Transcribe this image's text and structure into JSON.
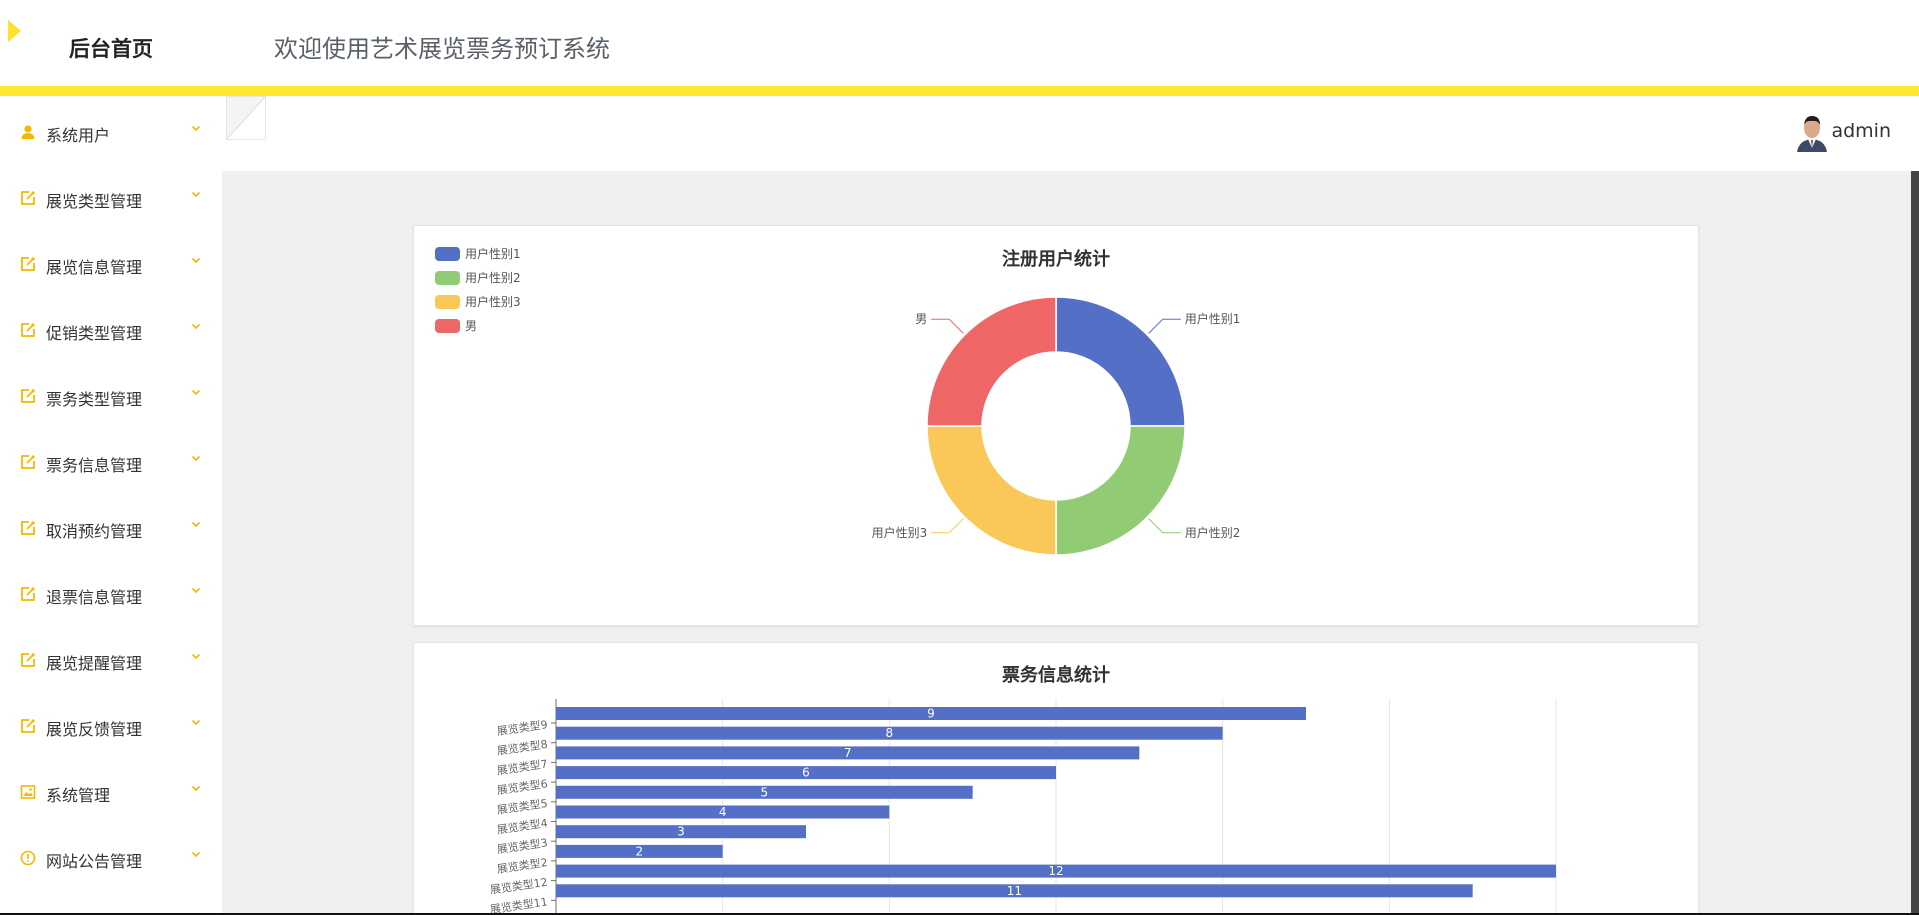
{
  "app": {
    "home_title": "后台首页",
    "welcome": "欢迎使用艺术展览票务预订系统"
  },
  "colors": {
    "accent": "#ffe733",
    "icon": "#f5b800",
    "blue": "#5470c6",
    "green": "#91cc75",
    "yellow": "#fac858",
    "red": "#ee6666"
  },
  "sidebar": {
    "items": [
      {
        "label": "系统用户",
        "icon": "user-icon"
      },
      {
        "label": "展览类型管理",
        "icon": "edit-icon"
      },
      {
        "label": "展览信息管理",
        "icon": "edit-icon"
      },
      {
        "label": "促销类型管理",
        "icon": "edit-icon"
      },
      {
        "label": "票务类型管理",
        "icon": "edit-icon"
      },
      {
        "label": "票务信息管理",
        "icon": "edit-icon"
      },
      {
        "label": "取消预约管理",
        "icon": "edit-icon"
      },
      {
        "label": "退票信息管理",
        "icon": "edit-icon"
      },
      {
        "label": "展览提醒管理",
        "icon": "edit-icon"
      },
      {
        "label": "展览反馈管理",
        "icon": "edit-icon"
      },
      {
        "label": "系统管理",
        "icon": "image-icon"
      },
      {
        "label": "网站公告管理",
        "icon": "info-icon"
      }
    ]
  },
  "toolbar": {
    "username": "admin"
  },
  "chart_data": [
    {
      "type": "pie",
      "title": "注册用户统计",
      "legend_position": "top-left",
      "labels": [
        "用户性别1",
        "用户性别2",
        "用户性别3",
        "男"
      ],
      "values": [
        1,
        1,
        1,
        1
      ]
    },
    {
      "type": "bar",
      "orientation": "horizontal",
      "title": "票务信息统计",
      "categories": [
        "展览类型9",
        "展览类型8",
        "展览类型7",
        "展览类型6",
        "展览类型5",
        "展览类型4",
        "展览类型3",
        "展览类型2",
        "展览类型12",
        "展览类型11"
      ],
      "values": [
        9,
        8,
        7,
        6,
        5,
        4,
        3,
        2,
        12,
        11
      ],
      "xlim": [
        0,
        12
      ],
      "grid": true
    }
  ]
}
